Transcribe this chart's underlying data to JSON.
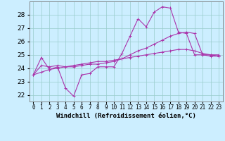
{
  "hours": [
    0,
    1,
    2,
    3,
    4,
    5,
    6,
    7,
    8,
    9,
    10,
    11,
    12,
    13,
    14,
    15,
    16,
    17,
    18,
    19,
    20,
    21,
    22,
    23
  ],
  "line1": [
    23.5,
    24.8,
    23.9,
    24.1,
    22.5,
    21.9,
    23.5,
    23.6,
    24.1,
    24.1,
    24.1,
    25.1,
    26.4,
    27.7,
    27.1,
    28.2,
    28.6,
    28.5,
    26.7,
    26.6,
    25.0,
    25.0,
    24.9,
    24.9
  ],
  "line2": [
    23.5,
    24.2,
    24.1,
    24.2,
    24.1,
    24.1,
    24.2,
    24.3,
    24.3,
    24.4,
    24.5,
    24.7,
    25.0,
    25.3,
    25.5,
    25.8,
    26.1,
    26.4,
    26.6,
    26.7,
    26.6,
    25.0,
    25.0,
    25.0
  ],
  "line3": [
    23.5,
    23.7,
    23.9,
    24.0,
    24.1,
    24.2,
    24.3,
    24.4,
    24.5,
    24.5,
    24.6,
    24.7,
    24.8,
    24.9,
    25.0,
    25.1,
    25.2,
    25.3,
    25.4,
    25.4,
    25.3,
    25.1,
    25.0,
    24.9
  ],
  "line_color": "#aa33aa",
  "bg_color": "#cceeff",
  "grid_color": "#99cccc",
  "xlabel": "Windchill (Refroidissement éolien,°C)",
  "ylim": [
    21.5,
    29.0
  ],
  "yticks": [
    22,
    23,
    24,
    25,
    26,
    27,
    28
  ],
  "xlim": [
    -0.5,
    23.5
  ],
  "figwidth": 3.2,
  "figheight": 2.0,
  "dpi": 100
}
